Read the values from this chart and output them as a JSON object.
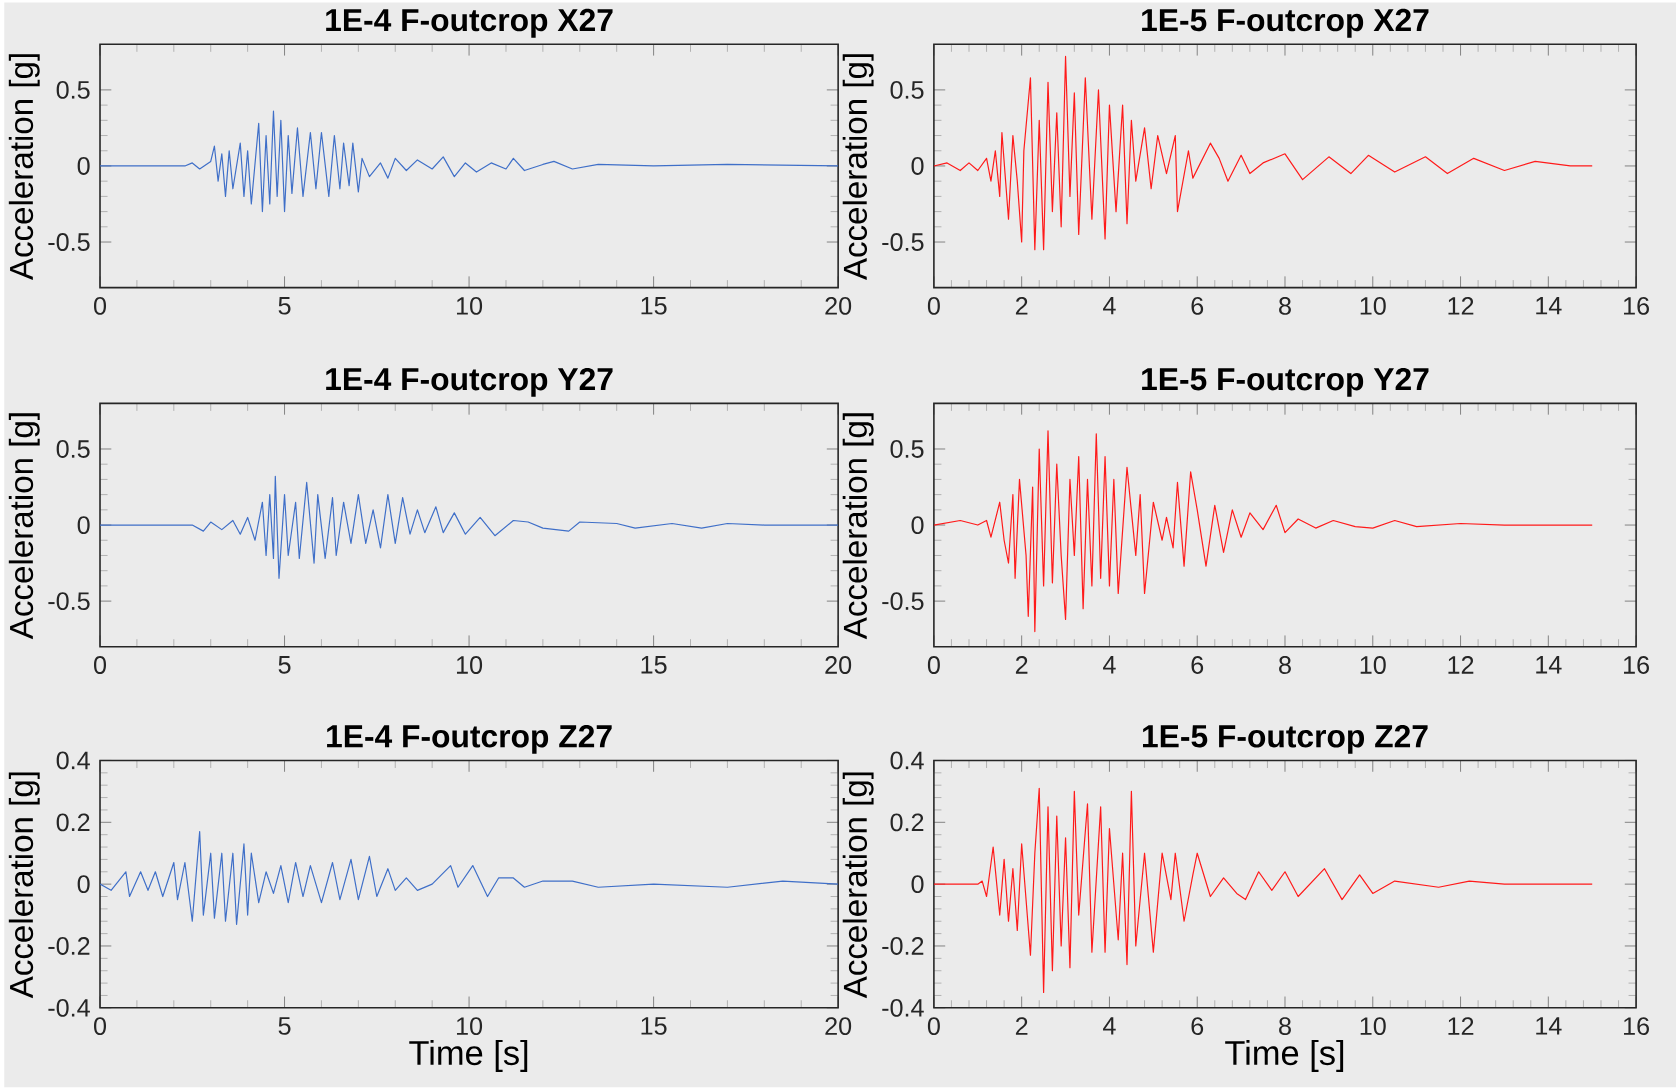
{
  "chart_data": [
    {
      "type": "line",
      "title": "1E-4 F-outcrop X27",
      "ylabel": "Acceleration [g]",
      "xlim": [
        0,
        20
      ],
      "ylim": [
        -0.8,
        0.8
      ],
      "xticks": [
        0,
        5,
        10,
        15,
        20
      ],
      "yticks": [
        -0.5,
        0,
        0.5
      ],
      "series": [
        {
          "color": "#3f6fc8",
          "x": [
            0,
            2.3,
            2.5,
            2.7,
            3.0,
            3.1,
            3.2,
            3.3,
            3.4,
            3.5,
            3.6,
            3.8,
            3.9,
            4.0,
            4.1,
            4.3,
            4.4,
            4.5,
            4.6,
            4.7,
            4.8,
            4.9,
            5.0,
            5.1,
            5.2,
            5.35,
            5.5,
            5.7,
            5.85,
            6.0,
            6.2,
            6.35,
            6.5,
            6.6,
            6.75,
            6.85,
            7.0,
            7.1,
            7.3,
            7.6,
            7.8,
            8.0,
            8.3,
            8.6,
            9.0,
            9.3,
            9.6,
            9.9,
            10.2,
            10.6,
            11.0,
            11.2,
            11.5,
            12.0,
            12.3,
            12.8,
            13.5,
            15,
            17,
            20
          ],
          "values": [
            0,
            0,
            0.02,
            -0.02,
            0.03,
            0.13,
            -0.1,
            0.08,
            -0.2,
            0.1,
            -0.15,
            0.15,
            -0.2,
            0.1,
            -0.25,
            0.28,
            -0.3,
            0.2,
            -0.25,
            0.36,
            -0.2,
            0.3,
            -0.3,
            0.2,
            -0.18,
            0.25,
            -0.2,
            0.22,
            -0.15,
            0.22,
            -0.2,
            0.2,
            -0.15,
            0.15,
            -0.13,
            0.15,
            -0.17,
            0.05,
            -0.07,
            0.02,
            -0.08,
            0.05,
            -0.03,
            0.04,
            -0.02,
            0.06,
            -0.07,
            0.02,
            -0.04,
            0.02,
            -0.02,
            0.05,
            -0.03,
            0.01,
            0.03,
            -0.02,
            0.01,
            0,
            0.01,
            0
          ]
        }
      ]
    },
    {
      "type": "line",
      "title": "1E-5 F-outcrop X27",
      "ylabel": "Acceleration [g]",
      "xlim": [
        0,
        16
      ],
      "ylim": [
        -0.8,
        0.8
      ],
      "xticks": [
        0,
        2,
        4,
        6,
        8,
        10,
        12,
        14,
        16
      ],
      "yticks": [
        -0.5,
        0,
        0.5
      ],
      "series": [
        {
          "color": "#ff1a1a",
          "x": [
            0,
            0.3,
            0.6,
            0.8,
            1.0,
            1.2,
            1.3,
            1.4,
            1.5,
            1.55,
            1.7,
            1.8,
            1.9,
            2.0,
            2.05,
            2.2,
            2.3,
            2.4,
            2.5,
            2.6,
            2.7,
            2.8,
            2.9,
            3.0,
            3.1,
            3.2,
            3.3,
            3.45,
            3.6,
            3.75,
            3.9,
            4.0,
            4.15,
            4.3,
            4.4,
            4.5,
            4.6,
            4.8,
            4.95,
            5.1,
            5.3,
            5.5,
            5.55,
            5.8,
            5.9,
            6.3,
            6.5,
            6.7,
            7.0,
            7.2,
            7.5,
            8.0,
            8.4,
            9.0,
            9.5,
            9.9,
            10.5,
            11.2,
            11.7,
            12.3,
            13.0,
            13.7,
            14.5,
            15
          ],
          "values": [
            0,
            0.02,
            -0.03,
            0.02,
            -0.03,
            0.05,
            -0.1,
            0.1,
            -0.2,
            0.22,
            -0.35,
            0.2,
            -0.1,
            -0.5,
            0.1,
            0.58,
            -0.55,
            0.3,
            -0.55,
            0.55,
            -0.3,
            0.35,
            -0.4,
            0.72,
            -0.2,
            0.48,
            -0.45,
            0.58,
            -0.35,
            0.5,
            -0.48,
            0.4,
            -0.3,
            0.4,
            -0.38,
            0.3,
            -0.1,
            0.25,
            -0.15,
            0.2,
            -0.05,
            0.2,
            -0.3,
            0.1,
            -0.08,
            0.15,
            0.05,
            -0.1,
            0.07,
            -0.05,
            0.02,
            0.08,
            -0.09,
            0.06,
            -0.05,
            0.07,
            -0.04,
            0.06,
            -0.05,
            0.05,
            -0.03,
            0.03,
            0,
            0
          ]
        }
      ]
    },
    {
      "type": "line",
      "title": "1E-4 F-outcrop Y27",
      "ylabel": "Acceleration [g]",
      "xlim": [
        0,
        20
      ],
      "ylim": [
        -0.8,
        0.8
      ],
      "xticks": [
        0,
        5,
        10,
        15,
        20
      ],
      "yticks": [
        -0.5,
        0,
        0.5
      ],
      "series": [
        {
          "color": "#3f6fc8",
          "x": [
            0,
            2.5,
            2.8,
            3.0,
            3.3,
            3.6,
            3.8,
            4.0,
            4.2,
            4.4,
            4.5,
            4.6,
            4.7,
            4.75,
            4.85,
            5.0,
            5.1,
            5.3,
            5.4,
            5.6,
            5.8,
            5.9,
            6.1,
            6.3,
            6.4,
            6.6,
            6.8,
            7.0,
            7.2,
            7.4,
            7.6,
            7.8,
            8.0,
            8.2,
            8.4,
            8.6,
            8.8,
            9.1,
            9.3,
            9.6,
            9.9,
            10.3,
            10.7,
            11.2,
            11.6,
            12.0,
            12.7,
            13.0,
            14.0,
            14.5,
            15.5,
            16.3,
            17.0,
            18.0,
            20
          ],
          "values": [
            0,
            0,
            -0.04,
            0.02,
            -0.03,
            0.03,
            -0.06,
            0.05,
            -0.1,
            0.15,
            -0.2,
            0.2,
            -0.22,
            0.32,
            -0.35,
            0.2,
            -0.2,
            0.15,
            -0.22,
            0.28,
            -0.25,
            0.2,
            -0.22,
            0.18,
            -0.2,
            0.15,
            -0.12,
            0.2,
            -0.12,
            0.1,
            -0.15,
            0.2,
            -0.12,
            0.18,
            -0.06,
            0.1,
            -0.05,
            0.12,
            -0.05,
            0.08,
            -0.06,
            0.05,
            -0.07,
            0.03,
            0.02,
            -0.02,
            -0.04,
            0.02,
            0.01,
            -0.02,
            0.01,
            -0.02,
            0.01,
            0,
            0
          ]
        }
      ]
    },
    {
      "type": "line",
      "title": "1E-5 F-outcrop Y27",
      "ylabel": "Acceleration [g]",
      "xlim": [
        0,
        16
      ],
      "ylim": [
        -0.8,
        0.8
      ],
      "xticks": [
        0,
        2,
        4,
        6,
        8,
        10,
        12,
        14,
        16
      ],
      "yticks": [
        -0.5,
        0,
        0.5
      ],
      "series": [
        {
          "color": "#ff1a1a",
          "x": [
            0,
            0.6,
            1.0,
            1.2,
            1.3,
            1.5,
            1.6,
            1.7,
            1.8,
            1.85,
            1.95,
            2.1,
            2.15,
            2.25,
            2.3,
            2.4,
            2.5,
            2.6,
            2.7,
            2.8,
            2.9,
            3.0,
            3.1,
            3.2,
            3.3,
            3.4,
            3.5,
            3.6,
            3.7,
            3.8,
            3.9,
            4.0,
            4.1,
            4.2,
            4.4,
            4.6,
            4.7,
            4.8,
            5.0,
            5.2,
            5.3,
            5.45,
            5.55,
            5.7,
            5.85,
            6.0,
            6.2,
            6.4,
            6.6,
            6.8,
            7.0,
            7.2,
            7.5,
            7.8,
            8.0,
            8.3,
            8.7,
            9.1,
            9.6,
            10.0,
            10.5,
            11.0,
            12.0,
            13.0,
            15
          ],
          "values": [
            0,
            0.03,
            0,
            0.03,
            -0.08,
            0.15,
            -0.1,
            -0.25,
            0.2,
            -0.35,
            0.3,
            -0.2,
            -0.6,
            0.25,
            -0.7,
            0.5,
            -0.4,
            0.62,
            -0.38,
            0.4,
            -0.2,
            -0.62,
            0.3,
            -0.2,
            0.45,
            -0.55,
            0.3,
            -0.4,
            0.6,
            -0.35,
            0.45,
            -0.4,
            0.3,
            -0.45,
            0.38,
            -0.2,
            0.2,
            -0.45,
            0.15,
            -0.1,
            0.05,
            -0.15,
            0.28,
            -0.27,
            0.35,
            0.1,
            -0.27,
            0.13,
            -0.18,
            0.1,
            -0.08,
            0.08,
            -0.03,
            0.13,
            -0.05,
            0.04,
            -0.02,
            0.03,
            -0.01,
            -0.02,
            0.03,
            -0.01,
            0.01,
            0,
            0
          ]
        }
      ]
    },
    {
      "type": "line",
      "title": "1E-4 F-outcrop Z27",
      "xlabel": "Time [s]",
      "ylabel": "Acceleration [g]",
      "xlim": [
        0,
        20
      ],
      "ylim": [
        -0.4,
        0.4
      ],
      "xticks": [
        0,
        5,
        10,
        15,
        20
      ],
      "yticks": [
        -0.4,
        -0.2,
        0,
        0.2,
        0.4
      ],
      "series": [
        {
          "color": "#3f6fc8",
          "x": [
            0,
            0.3,
            0.7,
            0.8,
            1.1,
            1.3,
            1.5,
            1.7,
            2.0,
            2.1,
            2.3,
            2.5,
            2.7,
            2.8,
            3.0,
            3.1,
            3.3,
            3.4,
            3.6,
            3.7,
            3.9,
            4.0,
            4.1,
            4.3,
            4.5,
            4.7,
            4.9,
            5.1,
            5.3,
            5.5,
            5.7,
            6.0,
            6.3,
            6.5,
            6.8,
            7.0,
            7.3,
            7.5,
            7.8,
            8.0,
            8.3,
            8.6,
            9.0,
            9.5,
            9.7,
            10.1,
            10.5,
            10.8,
            11.2,
            11.5,
            12.0,
            12.8,
            13.5,
            15,
            17,
            18.5,
            20
          ],
          "values": [
            0,
            -0.02,
            0.04,
            -0.04,
            0.04,
            -0.02,
            0.04,
            -0.04,
            0.07,
            -0.05,
            0.07,
            -0.12,
            0.17,
            -0.1,
            0.1,
            -0.11,
            0.1,
            -0.12,
            0.1,
            -0.13,
            0.13,
            -0.1,
            0.1,
            -0.06,
            0.04,
            -0.03,
            0.06,
            -0.06,
            0.07,
            -0.04,
            0.06,
            -0.06,
            0.07,
            -0.05,
            0.08,
            -0.05,
            0.09,
            -0.04,
            0.05,
            -0.02,
            0.02,
            -0.02,
            0,
            0.06,
            -0.01,
            0.06,
            -0.04,
            0.02,
            0.02,
            -0.01,
            0.01,
            0.01,
            -0.01,
            0,
            -0.01,
            0.01,
            0
          ]
        }
      ]
    },
    {
      "type": "line",
      "title": "1E-5 F-outcrop Z27",
      "xlabel": "Time [s]",
      "ylabel": "Acceleration [g]",
      "xlim": [
        0,
        16
      ],
      "ylim": [
        -0.4,
        0.4
      ],
      "xticks": [
        0,
        2,
        4,
        6,
        8,
        10,
        12,
        14,
        16
      ],
      "yticks": [
        -0.4,
        -0.2,
        0,
        0.2,
        0.4
      ],
      "series": [
        {
          "color": "#ff1a1a",
          "x": [
            0,
            1.0,
            1.1,
            1.2,
            1.35,
            1.5,
            1.6,
            1.7,
            1.8,
            1.9,
            2.0,
            2.2,
            2.3,
            2.4,
            2.5,
            2.6,
            2.7,
            2.8,
            2.9,
            3.0,
            3.1,
            3.2,
            3.3,
            3.5,
            3.6,
            3.8,
            3.9,
            4.0,
            4.2,
            4.3,
            4.4,
            4.5,
            4.6,
            4.8,
            5.0,
            5.2,
            5.4,
            5.5,
            5.7,
            5.9,
            6.0,
            6.3,
            6.6,
            6.9,
            7.1,
            7.4,
            7.7,
            8.0,
            8.3,
            8.9,
            9.3,
            9.7,
            10.0,
            10.5,
            11.5,
            12.2,
            13,
            15
          ],
          "values": [
            0,
            0,
            0.01,
            -0.04,
            0.12,
            -0.1,
            0.08,
            -0.12,
            0.05,
            -0.15,
            0.13,
            -0.23,
            0.1,
            0.31,
            -0.35,
            0.25,
            -0.28,
            0.22,
            -0.2,
            0.15,
            -0.27,
            0.3,
            -0.1,
            0.26,
            -0.22,
            0.25,
            -0.22,
            0.18,
            -0.18,
            0.1,
            -0.26,
            0.3,
            -0.2,
            0.1,
            -0.22,
            0.1,
            -0.05,
            0.1,
            -0.12,
            0.03,
            0.1,
            -0.04,
            0.02,
            -0.03,
            -0.05,
            0.04,
            -0.02,
            0.04,
            -0.04,
            0.05,
            -0.05,
            0.03,
            -0.03,
            0.01,
            -0.01,
            0.01,
            0,
            0
          ]
        }
      ]
    }
  ]
}
